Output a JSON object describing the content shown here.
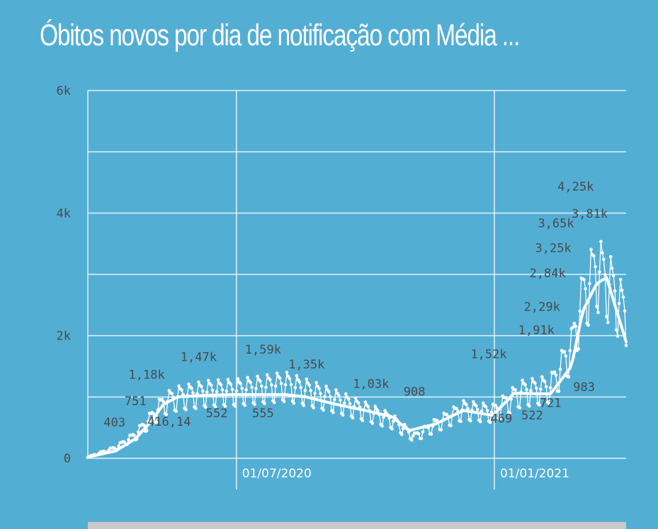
{
  "title": "Óbitos novos por dia de notificação com Média ...",
  "chart_data": {
    "type": "line",
    "title": "Óbitos novos por dia de notificação com Média ...",
    "xlabel": "",
    "ylabel": "",
    "x_range": [
      "2020-03-17",
      "2021-04-05"
    ],
    "ylim": [
      0,
      6000
    ],
    "y_ticks": [
      0,
      2000,
      4000,
      6000
    ],
    "y_tick_labels": [
      "0",
      "2k",
      "4k",
      "6k"
    ],
    "x_ticks": [
      "2020-07-01",
      "2021-01-01"
    ],
    "x_tick_labels": [
      "01/07/2020",
      "01/01/2021"
    ],
    "grid": true,
    "colors": {
      "background": "#53aed4",
      "line": "#ffffff",
      "grid": "#ffffff",
      "label": "#4a4a4a"
    },
    "series": [
      {
        "kind": "daily",
        "x_keypoints": [
          "2020-03-17",
          "2020-04-06",
          "2020-04-20",
          "2020-05-01",
          "2020-05-10",
          "2020-05-20",
          "2020-06-10",
          "2020-07-01",
          "2020-07-20",
          "2020-08-05",
          "2020-08-20",
          "2020-09-10",
          "2020-10-01",
          "2020-10-20",
          "2020-11-05",
          "2020-11-20",
          "2020-12-10",
          "2020-12-31",
          "2021-01-20",
          "2021-02-10",
          "2021-02-25",
          "2021-03-05",
          "2021-03-15",
          "2021-03-25",
          "2021-04-05"
        ],
        "y_keypoints": [
          20,
          170,
          380,
          650,
          900,
          1000,
          1080,
          1100,
          1150,
          1200,
          1100,
          950,
          780,
          620,
          350,
          550,
          800,
          750,
          1080,
          1150,
          1800,
          2600,
          3100,
          2800,
          2300
        ],
        "weekly_amplitude": 0.5
      },
      {
        "kind": "moving_average",
        "x": [
          "2020-03-17",
          "2020-04-06",
          "2020-04-20",
          "2020-05-01",
          "2020-05-10",
          "2020-05-20",
          "2020-06-10",
          "2020-07-01",
          "2020-07-20",
          "2020-08-05",
          "2020-08-20",
          "2020-09-10",
          "2020-10-01",
          "2020-10-20",
          "2020-11-01",
          "2020-11-20",
          "2020-12-10",
          "2020-12-31",
          "2021-01-15",
          "2021-02-10",
          "2021-02-25",
          "2021-03-05",
          "2021-03-15",
          "2021-03-22",
          "2021-04-05"
        ],
        "y": [
          20,
          120,
          320,
          600,
          880,
          1000,
          1030,
          1040,
          1040,
          1040,
          1000,
          880,
          780,
          680,
          450,
          560,
          780,
          700,
          1060,
          1050,
          1500,
          2400,
          2850,
          2950,
          1900
        ]
      }
    ],
    "annotations": [
      {
        "label": "403",
        "x": "2020-04-05",
        "y": 403
      },
      {
        "label": "751",
        "x": "2020-04-20",
        "y": 751
      },
      {
        "label": "1,18k",
        "x": "2020-04-28",
        "y": 1180
      },
      {
        "label": "416,14",
        "x": "2020-05-14",
        "y": 416.14
      },
      {
        "label": "1,47k",
        "x": "2020-06-04",
        "y": 1470
      },
      {
        "label": "552",
        "x": "2020-06-17",
        "y": 552
      },
      {
        "label": "1,59k",
        "x": "2020-07-20",
        "y": 1590
      },
      {
        "label": "555",
        "x": "2020-07-20",
        "y": 555
      },
      {
        "label": "1,35k",
        "x": "2020-08-20",
        "y": 1350
      },
      {
        "label": "1,03k",
        "x": "2020-10-05",
        "y": 1030
      },
      {
        "label": "908",
        "x": "2020-11-05",
        "y": 908
      },
      {
        "label": "1,52k",
        "x": "2020-12-28",
        "y": 1520
      },
      {
        "label": "469",
        "x": "2021-01-06",
        "y": 469
      },
      {
        "label": "522",
        "x": "2021-01-28",
        "y": 522
      },
      {
        "label": "1,91k",
        "x": "2021-01-31",
        "y": 1910
      },
      {
        "label": "2,29k",
        "x": "2021-02-04",
        "y": 2290
      },
      {
        "label": "721",
        "x": "2021-02-10",
        "y": 721
      },
      {
        "label": "2,84k",
        "x": "2021-02-08",
        "y": 2840
      },
      {
        "label": "3,25k",
        "x": "2021-02-12",
        "y": 3250
      },
      {
        "label": "3,65k",
        "x": "2021-02-14",
        "y": 3650
      },
      {
        "label": "4,25k",
        "x": "2021-02-28",
        "y": 4250
      },
      {
        "label": "3,81k",
        "x": "2021-03-10",
        "y": 3810
      },
      {
        "label": "983",
        "x": "2021-03-06",
        "y": 983
      }
    ]
  }
}
